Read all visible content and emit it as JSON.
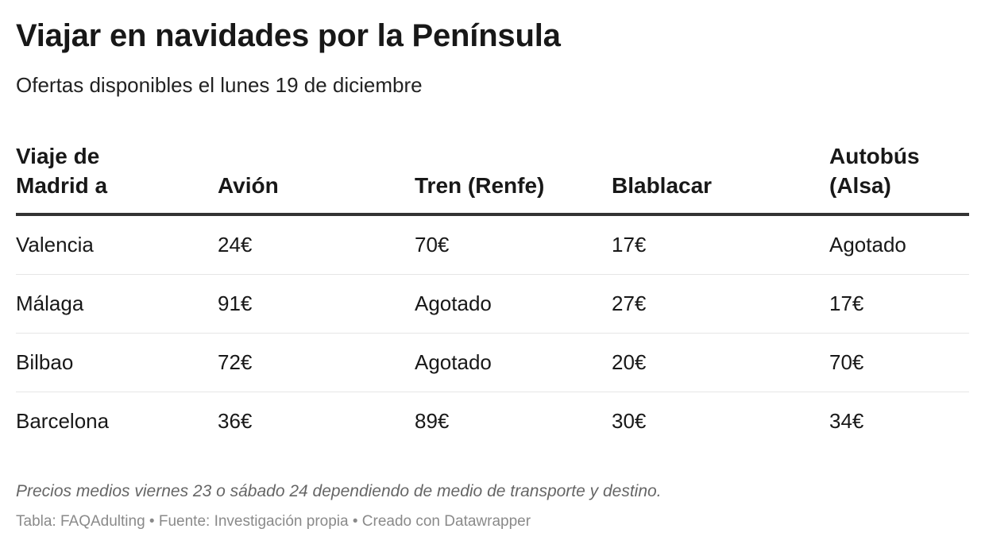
{
  "title": "Viajar en navidades por la Península",
  "subtitle": "Ofertas disponibles el lunes 19 de diciembre",
  "notes": "Precios medios viernes 23 o sábado 24 dependiendo de medio de transporte y destino.",
  "footer": "Tabla: FAQAdulting • Fuente: Investigación propia • Creado con Datawrapper",
  "colors": {
    "text": "#181818",
    "header_rule": "#333333",
    "row_divider": "#e6e6e6",
    "notes": "#666666",
    "footer": "#8a8a8a"
  },
  "chart_data": {
    "type": "table",
    "columns": [
      "Viaje de\nMadrid a",
      "Avión",
      "Tren (Renfe)",
      "Blablacar",
      "Autobús\n(Alsa)"
    ],
    "rows": [
      [
        "Valencia",
        "24€",
        "70€",
        "17€",
        "Agotado"
      ],
      [
        "Málaga",
        "91€",
        "Agotado",
        "27€",
        "17€"
      ],
      [
        "Bilbao",
        "72€",
        "Agotado",
        "20€",
        "70€"
      ],
      [
        "Barcelona",
        "36€",
        "89€",
        "30€",
        "34€"
      ]
    ]
  }
}
